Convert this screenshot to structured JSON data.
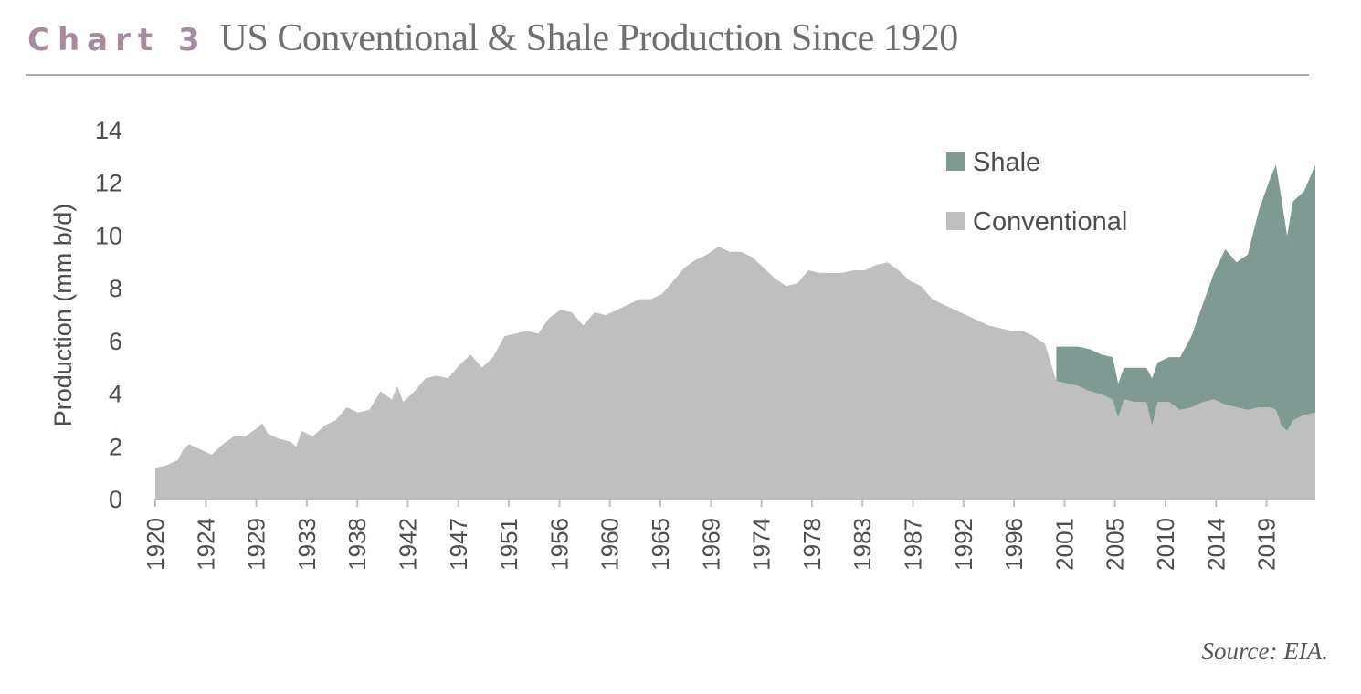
{
  "header": {
    "chart_label": "Chart 3",
    "title": "US Conventional & Shale Production Since 1920"
  },
  "source": "Source: EIA.",
  "colors": {
    "shale": "#7f9993",
    "conventional": "#bfbfbf",
    "chart_label": "#a58aa0",
    "axis": "#bfbfbf"
  },
  "chart_data": {
    "type": "area",
    "stacked": true,
    "title": "US Conventional & Shale Production Since 1920",
    "xlabel": "",
    "ylabel": "Production (mm b/d)",
    "ylim": [
      0,
      14
    ],
    "xlim": [
      1920,
      2023.0
    ],
    "yticks": [
      0,
      2,
      4,
      6,
      8,
      10,
      12,
      14
    ],
    "xtick_labels": [
      "1920",
      "1924",
      "1929",
      "1933",
      "1938",
      "1942",
      "1947",
      "1951",
      "1956",
      "1960",
      "1965",
      "1969",
      "1974",
      "1978",
      "1983",
      "1987",
      "1992",
      "1996",
      "2001",
      "2005",
      "2010",
      "2014",
      "2019"
    ],
    "grid": false,
    "legend": {
      "position": "top-right",
      "entries": [
        "Shale",
        "Conventional"
      ]
    },
    "series": [
      {
        "name": "Conventional",
        "x": [
          1920.0,
          1921.0,
          1922.0,
          1922.5,
          1923.0,
          1924.0,
          1925.0,
          1926.0,
          1927.0,
          1928.0,
          1929.0,
          1929.5,
          1930.0,
          1931.0,
          1932.0,
          1932.5,
          1933.0,
          1934.0,
          1935.0,
          1936.0,
          1937.0,
          1938.0,
          1939.0,
          1940.0,
          1941.0,
          1941.5,
          1942.0,
          1943.0,
          1944.0,
          1945.0,
          1946.0,
          1947.0,
          1948.0,
          1949.0,
          1950.0,
          1951.0,
          1952.0,
          1953.0,
          1954.0,
          1955.0,
          1956.0,
          1957.0,
          1958.0,
          1959.0,
          1960.0,
          1961.0,
          1962.0,
          1963.0,
          1964.0,
          1965.0,
          1966.0,
          1967.0,
          1968.0,
          1969.0,
          1970.0,
          1971.0,
          1972.0,
          1973.0,
          1974.0,
          1975.0,
          1976.0,
          1977.0,
          1978.0,
          1979.0,
          1980.0,
          1981.0,
          1982.0,
          1983.0,
          1984.0,
          1985.0,
          1986.0,
          1987.0,
          1988.0,
          1989.0,
          1990.0,
          1991.0,
          1992.0,
          1993.0,
          1994.0,
          1995.0,
          1996.0,
          1997.0,
          1998.0,
          1999.0,
          2000.0,
          2001.0,
          2002.0,
          2003.0,
          2004.0,
          2005.0,
          2005.5,
          2006.0,
          2007.0,
          2008.0,
          2008.5,
          2009.0,
          2010.0,
          2011.0,
          2012.0,
          2013.0,
          2014.0,
          2015.0,
          2016.0,
          2017.0,
          2018.0,
          2019.0,
          2019.5,
          2020.0,
          2020.5,
          2021.0,
          2022.0,
          2023.0
        ],
        "values": [
          1.2,
          1.3,
          1.5,
          1.9,
          2.1,
          1.9,
          1.7,
          2.1,
          2.4,
          2.4,
          2.7,
          2.9,
          2.5,
          2.3,
          2.2,
          2.0,
          2.6,
          2.4,
          2.8,
          3.0,
          3.5,
          3.3,
          3.4,
          4.1,
          3.8,
          4.3,
          3.7,
          4.1,
          4.6,
          4.7,
          4.6,
          5.1,
          5.5,
          5.0,
          5.4,
          6.2,
          6.3,
          6.4,
          6.3,
          6.9,
          7.2,
          7.1,
          6.6,
          7.1,
          7.0,
          7.2,
          7.4,
          7.6,
          7.6,
          7.8,
          8.3,
          8.8,
          9.1,
          9.3,
          9.6,
          9.4,
          9.4,
          9.2,
          8.8,
          8.4,
          8.1,
          8.2,
          8.7,
          8.6,
          8.6,
          8.6,
          8.7,
          8.7,
          8.9,
          9.0,
          8.7,
          8.3,
          8.1,
          7.6,
          7.4,
          7.2,
          7.0,
          6.8,
          6.6,
          6.5,
          6.4,
          6.4,
          6.2,
          5.9,
          4.5,
          4.4,
          4.3,
          4.1,
          4.0,
          3.8,
          3.1,
          3.8,
          3.7,
          3.7,
          2.8,
          3.7,
          3.7,
          3.4,
          3.5,
          3.7,
          3.8,
          3.6,
          3.5,
          3.4,
          3.5,
          3.5,
          3.4,
          2.8,
          2.6,
          3.0,
          3.2,
          3.3
        ],
        "color": "#bfbfbf"
      },
      {
        "name": "Shale",
        "x": [
          2000.0,
          2001.0,
          2002.0,
          2003.0,
          2004.0,
          2005.0,
          2005.5,
          2006.0,
          2007.0,
          2008.0,
          2008.5,
          2009.0,
          2010.0,
          2011.0,
          2012.0,
          2013.0,
          2014.0,
          2015.0,
          2016.0,
          2017.0,
          2018.0,
          2019.0,
          2019.5,
          2020.0,
          2020.5,
          2021.0,
          2022.0,
          2023.0
        ],
        "values": [
          1.3,
          1.4,
          1.5,
          1.6,
          1.5,
          1.6,
          1.3,
          1.2,
          1.3,
          1.3,
          1.8,
          1.5,
          1.7,
          2.0,
          2.7,
          3.7,
          4.8,
          5.9,
          5.5,
          5.9,
          7.5,
          8.7,
          9.3,
          8.6,
          7.4,
          8.3,
          8.5,
          9.4
        ],
        "color": "#7f9993"
      }
    ]
  }
}
